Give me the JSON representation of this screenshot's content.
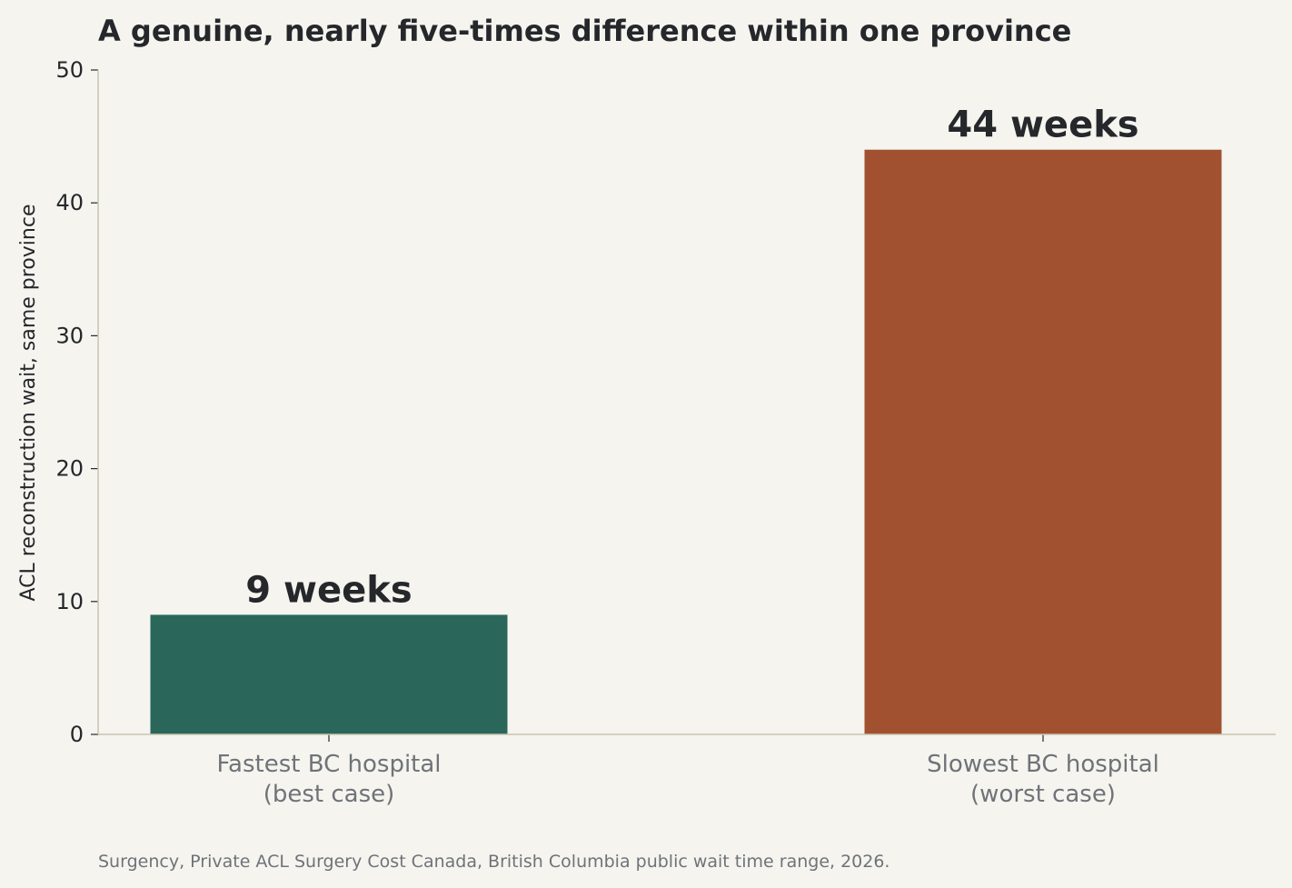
{
  "chart_data": {
    "type": "bar",
    "title": "A genuine, nearly five-times difference within one province",
    "ylabel": "ACL reconstruction wait, same province",
    "xlabel": "",
    "categories": [
      [
        "Fastest BC hospital",
        "(best case)"
      ],
      [
        "Slowest BC hospital",
        "(worst case)"
      ]
    ],
    "values": [
      9,
      44
    ],
    "data_labels": [
      "9 weeks",
      "44 weeks"
    ],
    "colors": [
      "#2b665a",
      "#a1512f"
    ],
    "ylim": [
      0,
      50
    ],
    "yticks": [
      0,
      10,
      20,
      30,
      40,
      50
    ],
    "grid": false,
    "legend": "none",
    "source": "Surgency, Private ACL Surgery Cost Canada, British Columbia public wait time range, 2026."
  }
}
